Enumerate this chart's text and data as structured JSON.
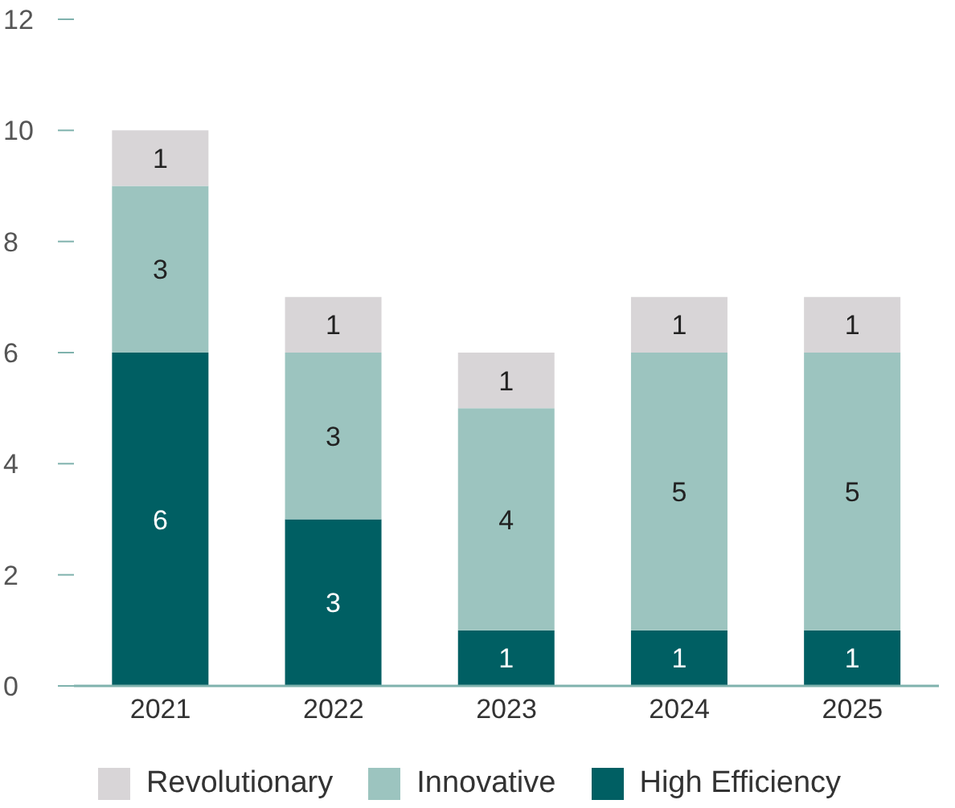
{
  "chart_data": {
    "type": "bar",
    "stacked": true,
    "categories": [
      "2021",
      "2022",
      "2023",
      "2024",
      "2025"
    ],
    "series": [
      {
        "name": "High Efficiency",
        "color": "#005f63",
        "values": [
          6,
          3,
          1,
          1,
          1
        ]
      },
      {
        "name": "Innovative",
        "color": "#9cc4bf",
        "values": [
          3,
          3,
          4,
          5,
          5
        ]
      },
      {
        "name": "Revolutionary",
        "color": "#d8d5d7",
        "values": [
          1,
          1,
          1,
          1,
          1
        ]
      }
    ],
    "ylim": [
      0,
      12
    ],
    "yticks": [
      0,
      2,
      4,
      6,
      8,
      10,
      12
    ],
    "data_labels": true,
    "legend": "bottom",
    "grid": false
  }
}
